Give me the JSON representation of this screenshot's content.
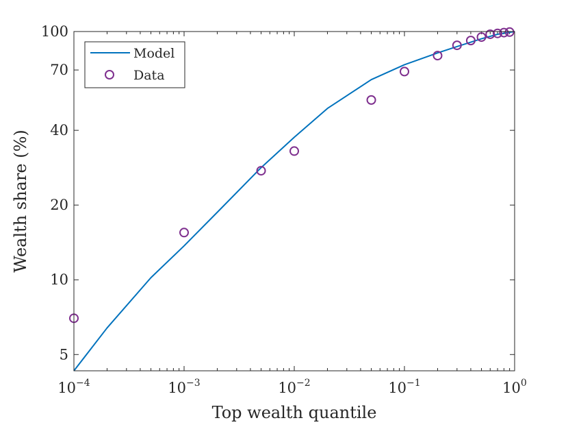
{
  "chart_data": {
    "type": "line+scatter",
    "xlabel": "Top wealth quantile",
    "ylabel": "Wealth share (%)",
    "x_scale": "log",
    "y_scale": "log",
    "xlim": [
      0.0001,
      1
    ],
    "ylim": [
      4.3,
      100
    ],
    "x_ticks": [
      {
        "value": 0.0001,
        "base": "10",
        "exp": "−4"
      },
      {
        "value": 0.001,
        "base": "10",
        "exp": "−3"
      },
      {
        "value": 0.01,
        "base": "10",
        "exp": "−2"
      },
      {
        "value": 0.1,
        "base": "10",
        "exp": "−1"
      },
      {
        "value": 1,
        "base": "10",
        "exp": "0"
      }
    ],
    "y_ticks": [
      {
        "value": 5,
        "label": "5"
      },
      {
        "value": 10,
        "label": "10"
      },
      {
        "value": 20,
        "label": "20"
      },
      {
        "value": 40,
        "label": "40"
      },
      {
        "value": 70,
        "label": "70"
      },
      {
        "value": 100,
        "label": "100"
      }
    ],
    "legend": {
      "position": "top-left",
      "entries": [
        {
          "label": "Model",
          "kind": "line",
          "color": "#0072BD"
        },
        {
          "label": "Data",
          "kind": "marker",
          "color": "#7E2F8E"
        }
      ]
    },
    "series": [
      {
        "name": "Model",
        "kind": "line",
        "color": "#0072BD",
        "x": [
          0.0001,
          0.0002,
          0.0005,
          0.001,
          0.002,
          0.005,
          0.01,
          0.02,
          0.05,
          0.1,
          0.2,
          0.3,
          0.5,
          0.7,
          1.0
        ],
        "y": [
          4.3,
          6.4,
          10.2,
          13.7,
          18.7,
          28.3,
          37.5,
          49,
          64,
          73.5,
          82,
          87,
          93.5,
          97.5,
          100
        ]
      },
      {
        "name": "Data",
        "kind": "marker",
        "color": "#7E2F8E",
        "x": [
          0.0001,
          0.001,
          0.005,
          0.01,
          0.05,
          0.1,
          0.2,
          0.3,
          0.4,
          0.5,
          0.6,
          0.7,
          0.8,
          0.9
        ],
        "y": [
          7,
          15.5,
          27.5,
          33,
          53,
          69,
          80,
          88,
          92,
          95,
          97.5,
          98.3,
          99,
          99.5
        ]
      }
    ]
  }
}
